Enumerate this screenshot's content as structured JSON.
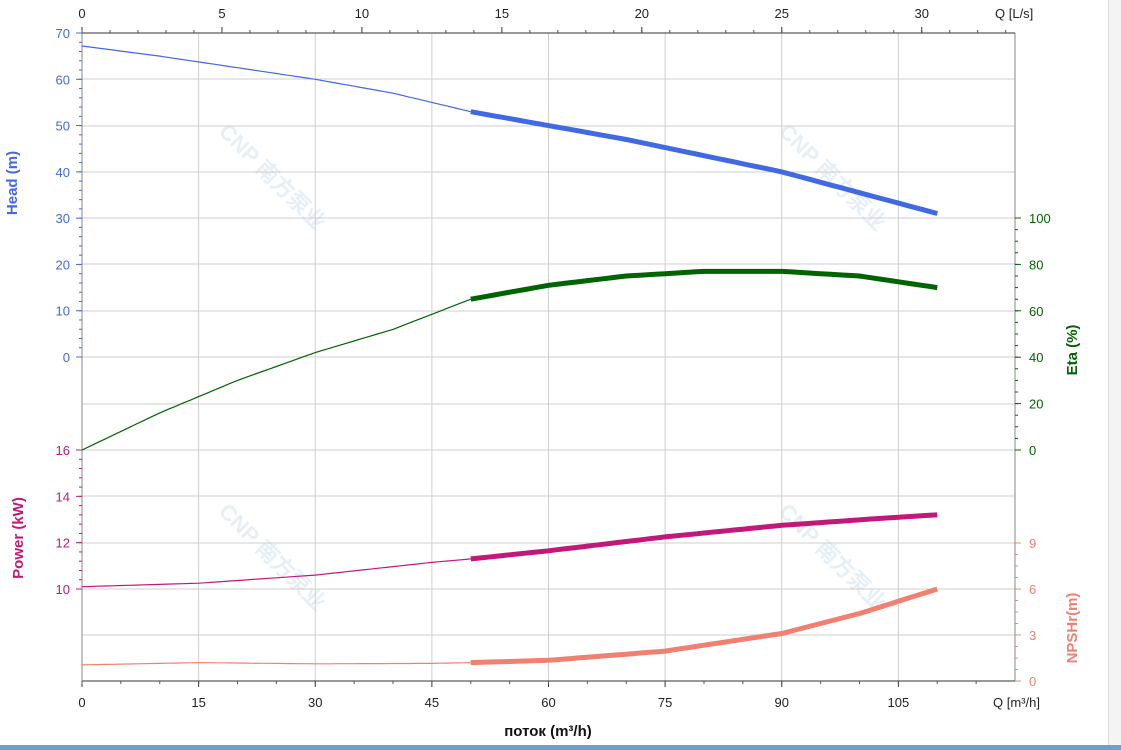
{
  "chart_data": {
    "type": "line",
    "x_primary": {
      "label": "поток (m³/h)",
      "unit_label": "Q [m³/h]",
      "ticks": [
        0,
        15,
        30,
        45,
        60,
        75,
        90,
        105
      ],
      "range": [
        0,
        120
      ]
    },
    "x_secondary": {
      "unit_label": "Q [L/s]",
      "ticks": [
        0,
        5,
        10,
        15,
        20,
        25,
        30
      ],
      "range": [
        0,
        33.333
      ]
    },
    "panels": {
      "head": {
        "axis_label": "Head (m)",
        "ticks": [
          0,
          10,
          20,
          30,
          40,
          50,
          60,
          70
        ],
        "range": [
          0,
          70
        ],
        "color": "#4169e1"
      },
      "eta": {
        "axis_label": "Eta (%)",
        "ticks": [
          0,
          20,
          40,
          60,
          80,
          100
        ],
        "range": [
          0,
          100
        ],
        "color": "#006400"
      },
      "power": {
        "axis_label": "Power (kW)",
        "ticks": [
          10,
          12,
          14,
          16
        ],
        "range": [
          10,
          16
        ],
        "color": "#c2187a"
      },
      "npsh": {
        "axis_label": "NPSHr(m)",
        "ticks": [
          0,
          3,
          6,
          9
        ],
        "range": [
          0,
          9
        ],
        "color": "#f08070"
      }
    },
    "series": [
      {
        "name": "Head",
        "axis": "head",
        "x": [
          0,
          10,
          20,
          30,
          40,
          50,
          60,
          70,
          80,
          90,
          100,
          110
        ],
        "y": [
          67.2,
          65.0,
          62.5,
          60.0,
          57.0,
          53.0,
          50.0,
          47.0,
          43.5,
          40.0,
          35.5,
          31.0
        ],
        "op_range": [
          50,
          110
        ]
      },
      {
        "name": "Eta",
        "axis": "eta",
        "x": [
          0,
          10,
          20,
          30,
          40,
          50,
          60,
          70,
          80,
          90,
          100,
          110
        ],
        "y": [
          0,
          16,
          30,
          42,
          52,
          65,
          71,
          75,
          77,
          77,
          75,
          70
        ],
        "op_range": [
          50,
          110
        ]
      },
      {
        "name": "Power",
        "axis": "power",
        "x": [
          0,
          15,
          30,
          45,
          50,
          60,
          75,
          90,
          105,
          110
        ],
        "y": [
          10.1,
          10.25,
          10.6,
          11.15,
          11.3,
          11.65,
          12.25,
          12.75,
          13.1,
          13.2
        ],
        "op_range": [
          50,
          110
        ]
      },
      {
        "name": "NPSHr",
        "axis": "npsh",
        "x": [
          0,
          15,
          30,
          45,
          50,
          60,
          75,
          90,
          100,
          110
        ],
        "y": [
          1.05,
          1.2,
          1.12,
          1.15,
          1.2,
          1.35,
          1.95,
          3.1,
          4.4,
          6.0
        ],
        "op_range": [
          50,
          110
        ]
      }
    ],
    "grid": true,
    "watermark": "CNP 南方泵业"
  }
}
